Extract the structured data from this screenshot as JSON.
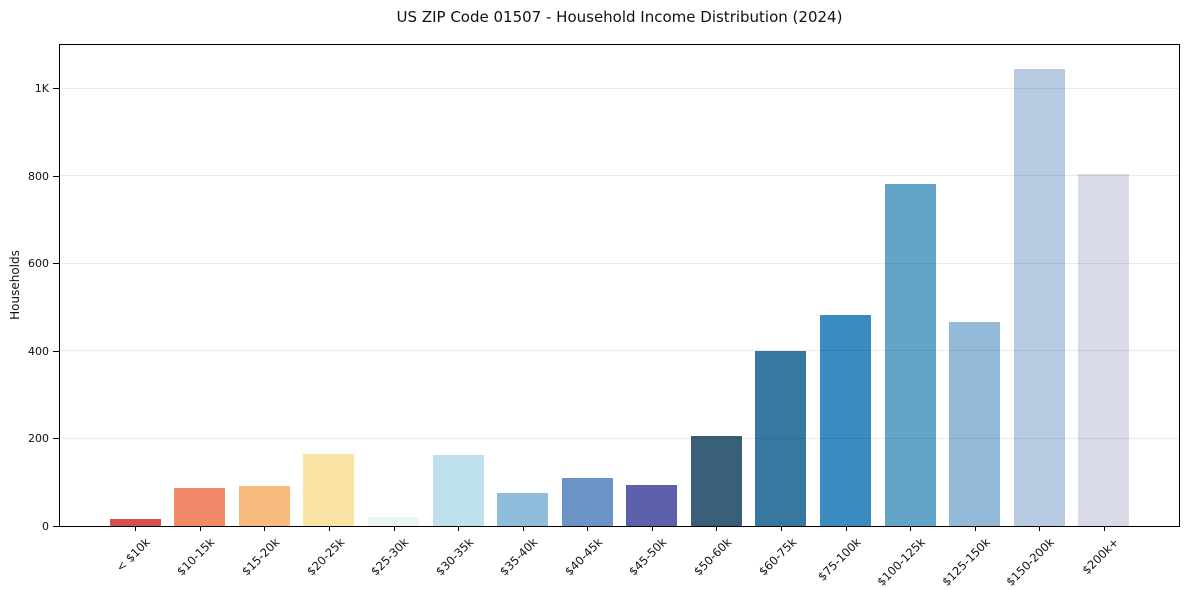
{
  "page": {
    "title": "US ZIP Code 01507 - Household Income Distribution (2024)"
  },
  "chart_data": {
    "type": "bar",
    "title": "US ZIP Code 01507 - Household Income Distribution (2024)",
    "xlabel": "",
    "ylabel": "Households",
    "categories": [
      "< $10k",
      "$10-15k",
      "$15-20k",
      "$20-25k",
      "$25-30k",
      "$30-35k",
      "$35-40k",
      "$40-45k",
      "$45-50k",
      "$50-60k",
      "$60-75k",
      "$75-100k",
      "$100-125k",
      "$125-150k",
      "$150-200k",
      "$200k+"
    ],
    "values": [
      15,
      87,
      91,
      164,
      21,
      162,
      75,
      110,
      93,
      205,
      400,
      482,
      782,
      467,
      1045,
      805
    ],
    "bar_colors": [
      "#d25050",
      "#f28968",
      "#f9bb7d",
      "#fbe3a3",
      "#eaf5f1",
      "#bfe1ee",
      "#90bcdb",
      "#6b93c5",
      "#5c5fa9",
      "#3a5f78",
      "#36789f",
      "#3a8bc0",
      "#62a5c9",
      "#92b9d8",
      "#b8c9e2",
      "#d9dae8"
    ],
    "ylim": [
      0,
      1100
    ],
    "yticks": [
      {
        "value": 0,
        "label": "0"
      },
      {
        "value": 200,
        "label": "200"
      },
      {
        "value": 400,
        "label": "400"
      },
      {
        "value": 600,
        "label": "600"
      },
      {
        "value": 800,
        "label": "800"
      },
      {
        "value": 1000,
        "label": "1K"
      }
    ],
    "grid": "horizontal gridlines at labeled y ticks, drawn faintly over bars",
    "legend": "none",
    "background": "#ffffff",
    "axis_color": "#000000",
    "text_color": "#111111"
  }
}
